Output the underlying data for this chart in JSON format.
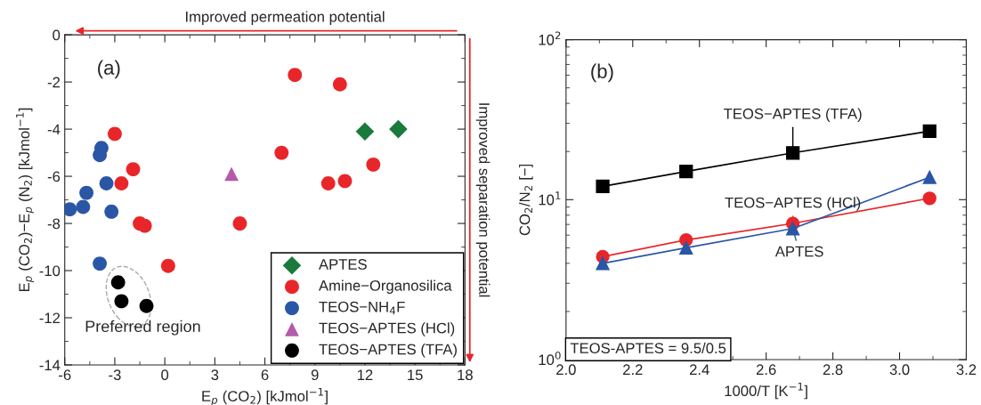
{
  "chart_data": [
    {
      "type": "scatter",
      "xlabel": "E$_{p}$ (CO$_{2}$) [kJmol$^{−1}$]",
      "ylabel": "E$_{p}$ (CO$_{2}$)−E$_{p}$ (N$_{2}$) [kJmol$^{−1}$]",
      "xlim": [
        -6,
        18
      ],
      "ylim": [
        -14,
        0
      ],
      "xticks": [
        -6,
        -3,
        0,
        3,
        6,
        9,
        12,
        15,
        18
      ],
      "yticks": [
        -14,
        -12,
        -10,
        -8,
        -6,
        -4,
        -2,
        0
      ],
      "grid": false,
      "legend": "bottom right",
      "annotations": [
        "(a)",
        "Preferred region",
        "Improved permeation potential",
        "Improved separation potential"
      ],
      "series": [
        {
          "name": "APTES",
          "color": "#1a7a3c",
          "marker": "diamond",
          "x": [
            12.0,
            14.0
          ],
          "values": [
            -4.1,
            -4.0
          ]
        },
        {
          "name": "Amine−Organosilica",
          "color": "#e8262a",
          "marker": "circle",
          "x": [
            7.8,
            10.5,
            -3.0,
            7.0,
            12.5,
            -1.9,
            -2.6,
            9.8,
            10.8,
            -1.5,
            -1.2,
            4.5,
            0.2
          ],
          "values": [
            -1.7,
            -2.1,
            -4.2,
            -5.0,
            -5.5,
            -5.7,
            -6.3,
            -6.3,
            -6.2,
            -8.0,
            -8.1,
            -8.0,
            -9.8
          ]
        },
        {
          "name": "TEOS−NH$_{4}$F",
          "color": "#2a56a6",
          "marker": "circle",
          "x": [
            -3.8,
            -3.9,
            -3.5,
            -4.7,
            -4.9,
            -5.7,
            -3.2,
            -3.9
          ],
          "values": [
            -4.8,
            -5.1,
            -6.3,
            -6.7,
            -7.3,
            -7.4,
            -7.5,
            -9.7
          ]
        },
        {
          "name": "TEOS−APTES (HCl)",
          "color": "#b45aab",
          "marker": "triangle",
          "x": [
            4.0
          ],
          "values": [
            -5.9
          ]
        },
        {
          "name": "TEOS−APTES (TFA)",
          "color": "#000000",
          "marker": "circle",
          "x": [
            -2.8,
            -2.6,
            -1.1
          ],
          "values": [
            -10.5,
            -11.3,
            -11.5
          ]
        }
      ]
    },
    {
      "type": "line",
      "xlabel": "1000/T [K$^{−1}$]",
      "ylabel": "CO$_{2}$/N$_{2}$ [−]",
      "log": "y",
      "xlim": [
        2.0,
        3.2
      ],
      "ylim": [
        1,
        100
      ],
      "xticks": [
        {
          "value": 2.0,
          "label": "2.0"
        },
        2.2,
        2.4,
        2.6,
        2.8,
        {
          "value": 3.0,
          "label": "3.0"
        },
        3.2
      ],
      "yticks": [
        {
          "value": 1,
          "label": "10$^{0}$"
        },
        {
          "value": 10,
          "label": "10$^{1}$"
        },
        {
          "value": 100,
          "label": "10$^{2}$"
        }
      ],
      "grid": false,
      "annotations": [
        "(b)",
        "TEOS-APTES = 9.5/0.5"
      ],
      "series": [
        {
          "name": "TEOS−APTES (TFA)",
          "color": "#000000",
          "marker": "square",
          "x": [
            2.11,
            2.36,
            2.68,
            3.09
          ],
          "values": [
            12.1,
            15.0,
            19.6,
            26.8
          ]
        },
        {
          "name": "TEOS−APTES (HCl)",
          "color": "#e8262a",
          "marker": "circle",
          "x": [
            2.11,
            2.36,
            2.68,
            3.09
          ],
          "values": [
            4.4,
            5.6,
            7.1,
            10.2
          ]
        },
        {
          "name": "APTES",
          "color": "#2a56a6",
          "marker": "triangle",
          "x": [
            2.11,
            2.36,
            2.68,
            3.09
          ],
          "values": [
            4.0,
            5.0,
            6.6,
            13.8
          ]
        }
      ]
    }
  ]
}
